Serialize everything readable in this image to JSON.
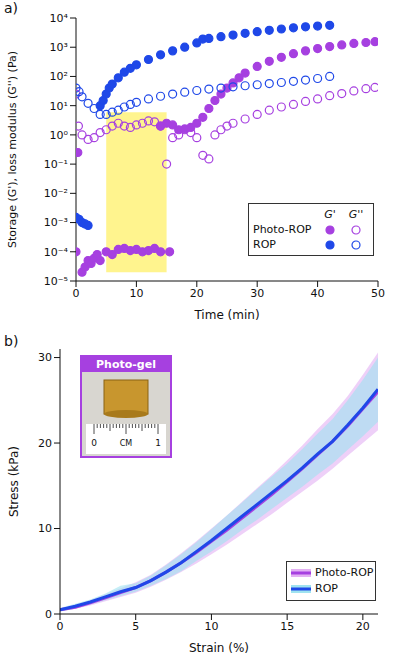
{
  "chart_data": [
    {
      "type": "scatter",
      "panel": "a)",
      "log": "y",
      "x_label": "Time (min)",
      "y_label": "Storage (G'), loss modulus (G'') (Pa)",
      "xlim": [
        0,
        50
      ],
      "xticks": [
        0,
        10,
        20,
        30,
        40,
        50
      ],
      "ylim": [
        1e-05,
        10000
      ],
      "yticks": [
        {
          "value": 1e-05,
          "label": "10⁻⁵"
        },
        {
          "value": 0.0001,
          "label": "10⁻⁴"
        },
        {
          "value": 0.001,
          "label": "10⁻³"
        },
        {
          "value": 0.01,
          "label": "10⁻²"
        },
        {
          "value": 0.1,
          "label": "10⁻¹"
        },
        {
          "value": 1,
          "label": "10⁰"
        },
        {
          "value": 10,
          "label": "10¹"
        },
        {
          "value": 100,
          "label": "10²"
        },
        {
          "value": 1000,
          "label": "10³"
        },
        {
          "value": 10000,
          "label": "10⁴"
        }
      ],
      "legend": "lower right",
      "shaded_region": {
        "x": [
          5,
          15
        ],
        "y": [
          2e-05,
          6
        ],
        "color": "#fff27a"
      },
      "series": [
        {
          "name": "Photo-ROP",
          "modulus": "G'",
          "color": "#a640e0",
          "marker": "filled",
          "x": [
            0,
            0.3,
            1,
            1.5,
            2,
            2.5,
            3,
            3.5,
            4,
            5,
            6,
            7,
            8,
            9,
            10,
            11,
            12,
            13,
            14,
            15.5,
            14,
            15,
            16,
            17,
            18,
            19,
            20,
            21,
            22,
            23,
            24,
            25,
            26,
            27,
            28,
            30,
            32,
            34,
            36,
            38,
            40,
            42,
            44,
            46,
            48,
            49.5
          ],
          "values": [
            0.0001,
            0.25,
            2e-05,
            3e-05,
            5e-05,
            4e-05,
            6e-05,
            8e-05,
            5e-05,
            0.0001,
            8e-05,
            0.00012,
            0.00013,
            0.00011,
            0.00012,
            0.0001,
            0.00011,
            0.00013,
            0.0001,
            0.0001,
            2,
            2.5,
            2.2,
            1.5,
            1.6,
            1.8,
            2.5,
            4,
            8,
            15,
            25,
            40,
            60,
            90,
            130,
            220,
            330,
            450,
            600,
            750,
            900,
            1050,
            1200,
            1350,
            1450,
            1550
          ]
        },
        {
          "name": "Photo-ROP",
          "modulus": "G''",
          "color": "#a640e0",
          "marker": "open",
          "x": [
            0,
            0.4,
            1,
            2,
            3,
            4,
            5,
            6,
            7,
            8,
            9,
            10,
            11,
            12,
            13,
            14,
            15,
            16,
            17,
            18,
            19,
            20,
            21,
            22,
            23,
            24,
            25,
            26,
            28,
            30,
            32,
            34,
            36,
            38,
            40,
            42,
            44,
            46,
            48,
            49.5
          ],
          "values": [
            25,
            2,
            1,
            0.7,
            0.8,
            1.2,
            1.5,
            2,
            2.5,
            2,
            1.8,
            2.2,
            2.5,
            3,
            2.8,
            2,
            0.1,
            0.8,
            1,
            1.5,
            1.2,
            0.8,
            0.2,
            0.15,
            1,
            1.5,
            2,
            2.5,
            3.5,
            5,
            7,
            9,
            11,
            14,
            17,
            22,
            26,
            32,
            38,
            42
          ]
        },
        {
          "name": "ROP",
          "modulus": "G'",
          "color": "#1f48e8",
          "marker": "filled",
          "x": [
            0,
            0.5,
            1,
            1.5,
            2,
            4,
            4.5,
            5,
            5.5,
            6,
            7,
            8,
            9,
            10,
            12,
            14,
            16,
            18,
            20,
            21,
            22,
            24,
            26,
            28,
            30,
            32,
            34,
            36,
            38,
            40,
            42
          ],
          "values": [
            0.0015,
            0.0013,
            0.001,
            0.0009,
            0.0008,
            10,
            15,
            25,
            40,
            55,
            90,
            140,
            190,
            250,
            380,
            550,
            750,
            1000,
            1400,
            1900,
            2000,
            2300,
            2600,
            3000,
            3400,
            3800,
            4200,
            4600,
            5000,
            5300,
            5600
          ]
        },
        {
          "name": "ROP",
          "modulus": "G''",
          "color": "#1f48e8",
          "marker": "open",
          "x": [
            0,
            0.5,
            1,
            2,
            3,
            4,
            5,
            6,
            7,
            8,
            9,
            10,
            12,
            14,
            16,
            18,
            20,
            22,
            24,
            26,
            28,
            30,
            32,
            34,
            36,
            38,
            40,
            42
          ],
          "values": [
            40,
            30,
            20,
            12,
            8,
            5,
            5,
            6,
            7,
            9,
            11,
            13,
            17,
            21,
            25,
            29,
            33,
            37,
            40,
            44,
            48,
            52,
            57,
            62,
            68,
            75,
            85,
            100
          ]
        }
      ]
    },
    {
      "type": "line",
      "panel": "b)",
      "x_label": "Strain (%)",
      "y_label": "Stress (kPa)",
      "xlim": [
        0,
        21
      ],
      "xticks": [
        0,
        5,
        10,
        15,
        20
      ],
      "ylim": [
        0,
        31
      ],
      "yticks": [
        0,
        10,
        20,
        30
      ],
      "legend": "lower right",
      "inset": {
        "title": "Photo-gel",
        "ruler_labels": [
          "0",
          "CM",
          "1"
        ]
      },
      "x": [
        0,
        1,
        2,
        3,
        4,
        5,
        6,
        7,
        8,
        9,
        10,
        11,
        12,
        13,
        14,
        15,
        16,
        17,
        18,
        19,
        20,
        21
      ],
      "series": [
        {
          "name": "Photo-ROP",
          "color": "#a640e0",
          "band_color": "#e3b0f3",
          "line_style": "solid",
          "values": [
            0.5,
            0.8,
            1.3,
            1.9,
            2.5,
            3.1,
            3.9,
            4.9,
            6,
            7.2,
            8.5,
            9.8,
            11.2,
            12.6,
            14,
            15.5,
            17,
            18.6,
            20.2,
            22,
            24,
            26
          ],
          "lower": [
            0.3,
            0.6,
            1,
            1.5,
            2,
            2.5,
            3.2,
            4,
            4.9,
            5.9,
            7,
            8.1,
            9.3,
            10.5,
            11.7,
            13,
            14.3,
            15.6,
            17,
            18.5,
            20,
            21.5
          ],
          "upper": [
            0.7,
            1,
            1.6,
            2.3,
            3,
            3.7,
            4.6,
            5.8,
            7.1,
            8.5,
            10,
            11.5,
            13.1,
            14.7,
            16.3,
            18,
            19.7,
            21.6,
            23.4,
            25.5,
            28,
            30.6
          ]
        },
        {
          "name": "ROP",
          "color": "#1f48e8",
          "band_color": "#9fe3f0",
          "line_style": "solid",
          "values": [
            0.5,
            0.9,
            1.4,
            2,
            2.6,
            3.1,
            3.9,
            4.9,
            6,
            7.3,
            8.6,
            10,
            11.4,
            12.8,
            14.2,
            15.6,
            17.1,
            18.7,
            20.2,
            22.1,
            24.1,
            26.3
          ],
          "lower": [
            0.3,
            0.6,
            1.1,
            1.6,
            2.1,
            2.6,
            3.3,
            4.1,
            5,
            6.2,
            7.3,
            8.5,
            9.8,
            11,
            12.3,
            13.6,
            14.9,
            16.3,
            17.6,
            19.2,
            20.8,
            22.5
          ],
          "upper": [
            0.7,
            1.2,
            1.7,
            2.4,
            3.3,
            3.6,
            4.5,
            5.7,
            7,
            8.4,
            9.9,
            11.5,
            13,
            14.6,
            16.1,
            17.6,
            19.3,
            21.1,
            22.8,
            25,
            27.4,
            30
          ]
        }
      ]
    }
  ]
}
